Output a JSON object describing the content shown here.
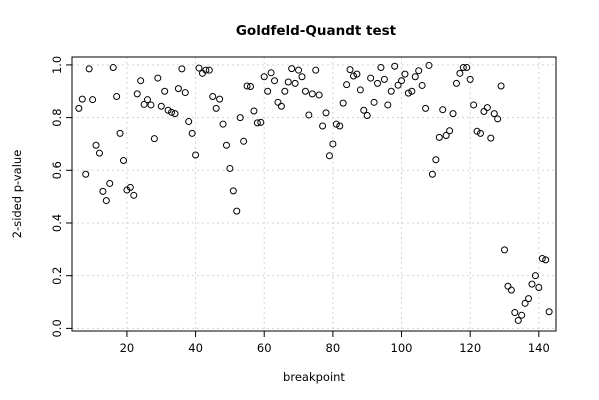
{
  "chart_data": {
    "type": "scatter",
    "title": "Goldfeld-Quandt test",
    "xlabel": "breakpoint",
    "ylabel": "2-sided p-value",
    "xlim": [
      4,
      145
    ],
    "ylim": [
      -0.01,
      1.03
    ],
    "xticks": [
      20,
      40,
      60,
      80,
      100,
      120,
      140
    ],
    "yticks": [
      0.0,
      0.2,
      0.4,
      0.6,
      0.8,
      1.0
    ],
    "xtick_labels": [
      "20",
      "40",
      "60",
      "80",
      "100",
      "120",
      "140"
    ],
    "ytick_labels": [
      "0.0",
      "0.2",
      "0.4",
      "0.6",
      "0.8",
      "1.0"
    ],
    "grid": true,
    "x": [
      6,
      7,
      8,
      9,
      10,
      11,
      12,
      13,
      14,
      15,
      16,
      17,
      18,
      19,
      20,
      21,
      22,
      23,
      24,
      25,
      26,
      27,
      28,
      29,
      30,
      31,
      32,
      33,
      34,
      35,
      36,
      37,
      38,
      39,
      40,
      41,
      42,
      43,
      44,
      45,
      46,
      47,
      48,
      49,
      50,
      51,
      52,
      53,
      54,
      55,
      56,
      57,
      58,
      59,
      60,
      61,
      62,
      63,
      64,
      65,
      66,
      67,
      68,
      69,
      70,
      71,
      72,
      73,
      74,
      75,
      76,
      77,
      78,
      79,
      80,
      81,
      82,
      83,
      84,
      85,
      86,
      87,
      88,
      89,
      90,
      91,
      92,
      93,
      94,
      95,
      96,
      97,
      98,
      99,
      100,
      101,
      102,
      103,
      104,
      105,
      106,
      107,
      108,
      109,
      110,
      111,
      112,
      113,
      114,
      115,
      116,
      117,
      118,
      119,
      120,
      121,
      122,
      123,
      124,
      125,
      126,
      127,
      128,
      129,
      130,
      131,
      132,
      133,
      134,
      135,
      136,
      137,
      138,
      139,
      140,
      141,
      142,
      143
    ],
    "y": [
      0.835,
      0.87,
      0.585,
      0.985,
      0.868,
      0.695,
      0.665,
      0.52,
      0.485,
      0.55,
      0.99,
      0.88,
      0.74,
      0.637,
      0.525,
      0.535,
      0.505,
      0.89,
      0.94,
      0.85,
      0.868,
      0.848,
      0.72,
      0.95,
      0.843,
      0.9,
      0.828,
      0.82,
      0.815,
      0.91,
      0.985,
      0.895,
      0.785,
      0.74,
      0.658,
      0.988,
      0.968,
      0.98,
      0.98,
      0.88,
      0.835,
      0.87,
      0.775,
      0.695,
      0.607,
      0.522,
      0.445,
      0.8,
      0.71,
      0.92,
      0.918,
      0.825,
      0.78,
      0.782,
      0.955,
      0.9,
      0.97,
      0.94,
      0.858,
      0.843,
      0.9,
      0.935,
      0.986,
      0.93,
      0.98,
      0.955,
      0.9,
      0.81,
      0.89,
      0.98,
      0.886,
      0.768,
      0.818,
      0.655,
      0.7,
      0.775,
      0.768,
      0.855,
      0.925,
      0.982,
      0.958,
      0.965,
      0.905,
      0.828,
      0.808,
      0.95,
      0.858,
      0.93,
      0.99,
      0.945,
      0.848,
      0.9,
      0.995,
      0.923,
      0.94,
      0.965,
      0.893,
      0.9,
      0.955,
      0.978,
      0.922,
      0.835,
      0.998,
      0.585,
      0.64,
      0.725,
      0.83,
      0.732,
      0.75,
      0.815,
      0.93,
      0.968,
      0.99,
      0.99,
      0.945,
      0.848,
      0.748,
      0.74,
      0.823,
      0.838,
      0.722,
      0.815,
      0.795,
      0.92,
      0.298,
      0.16,
      0.145,
      0.06,
      0.03,
      0.05,
      0.095,
      0.113,
      0.168,
      0.2,
      0.155,
      0.265,
      0.26,
      0.063
    ]
  }
}
